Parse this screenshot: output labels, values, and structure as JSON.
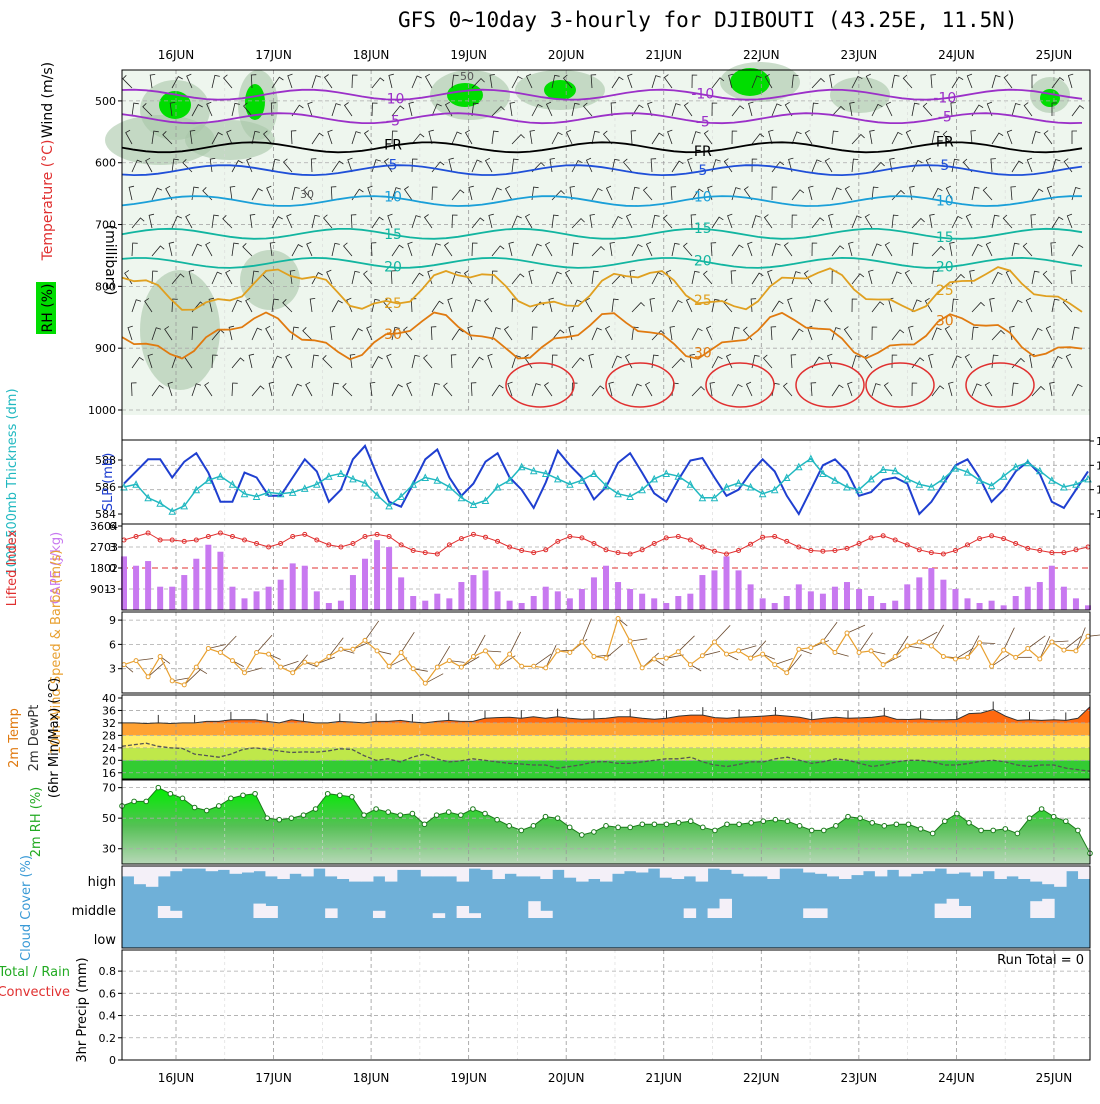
{
  "title": "GFS 0~10day 3-hourly for DJIBOUTI (43.25E, 11.5N)",
  "colors": {
    "rh_green": "#00dd00",
    "purple": "#9b30c8",
    "blue": "#1f4fd8",
    "lightblue": "#1a9fd8",
    "teal": "#12b5a0",
    "orange": "#e0a020",
    "darkorange": "#e07a10",
    "red": "#e03030",
    "cape": "#c879f0",
    "slp": "#1f3fd0",
    "thick": "#20b8c0",
    "wind": "#e8a030",
    "cloud": "#6fb0d8",
    "cloud_gap": "#f4f0f8",
    "rh2m": "#33cc33"
  },
  "chart_data": [
    {
      "id": "upper-air",
      "type": "contour",
      "dates": [
        "16JUN",
        "17JUN",
        "18JUN",
        "19JUN",
        "20JUN",
        "21JUN",
        "22JUN",
        "23JUN",
        "24JUN",
        "25JUN"
      ],
      "ylabel_parts": [
        "RH (%)",
        "Temperature (°C)",
        "Wind (m/s)",
        "(millibars)"
      ],
      "yticks": [
        500,
        600,
        700,
        800,
        900,
        1000
      ],
      "ylim": [
        1000,
        450
      ],
      "isotherms": [
        {
          "label": "-10",
          "level": 490,
          "color": "purple"
        },
        {
          "label": "-5",
          "level": 528,
          "color": "purple"
        },
        {
          "label": "FR",
          "level": 575,
          "color": "black"
        },
        {
          "label": "5",
          "level": 612,
          "color": "blue"
        },
        {
          "label": "10",
          "level": 662,
          "color": "lightblue"
        },
        {
          "label": "15",
          "level": 715,
          "color": "teal"
        },
        {
          "label": "20",
          "level": 762,
          "color": "teal"
        },
        {
          "label": "25",
          "level": 805,
          "color": "orange"
        },
        {
          "label": "30",
          "level": 880,
          "color": "darkorange"
        }
      ],
      "rh_labels": [
        "30",
        "50"
      ]
    },
    {
      "id": "slp-thickness",
      "type": "line",
      "ylabel_left": "1000-500mb Thickness (dm)",
      "ylabel_right": "SLP (mb)",
      "yticks_left": [
        584,
        586,
        588
      ],
      "yticks_right": [
        1000,
        1002,
        1004,
        1006
      ],
      "series": [
        {
          "name": "SLP (mb)",
          "values": [
            1002.5,
            1003.5,
            1004.5,
            1004.5,
            1003,
            1004.3,
            1005,
            1003.4,
            1001,
            1001,
            1003.4,
            1003,
            1001.5,
            1001.5,
            1003,
            1004.5,
            1003.5,
            1001,
            1002,
            1004.5,
            1005.6,
            1003.2,
            1001,
            1000.6,
            1002.5,
            1004.5,
            1005.3,
            1003,
            1001.5,
            1002.5,
            1004.3,
            1005,
            1003,
            1002,
            1000.5,
            1002.6,
            1005.2,
            1004,
            1003,
            1001.2,
            1002.2,
            1004.2,
            1005,
            1003.4,
            1001.7,
            1001,
            1002.8,
            1004.4,
            1004.6,
            1003,
            1001.5,
            1002,
            1003.4,
            1004.5,
            1003.5,
            1001.5,
            1000,
            1002,
            1004,
            1004.5,
            1003.5,
            1001.5,
            1001.8,
            1002.8,
            1003,
            1002.5,
            1000,
            1001,
            1002.5,
            1004,
            1004.5,
            1003,
            1001,
            1002,
            1003.5,
            1004.3,
            1003.3,
            1001,
            1000.5,
            1002,
            1003.5
          ]
        },
        {
          "name": "Thickness (dm)",
          "values": [
            586,
            586.2,
            585.2,
            584.8,
            584.2,
            584.6,
            585.8,
            586.5,
            586.8,
            586.2,
            585.5,
            585.3,
            585.6,
            585.5,
            585.6,
            585.9,
            586.2,
            586.8,
            587,
            586.6,
            586.3,
            585.4,
            584.6,
            585.3,
            586.2,
            586.7,
            586.5,
            586,
            585.2,
            584.7,
            585,
            586,
            586.5,
            587.5,
            587.2,
            587,
            586.6,
            586.2,
            586.5,
            587,
            586.1,
            585.5,
            585.3,
            585.8,
            586.6,
            587,
            586.8,
            586.2,
            585.2,
            585.2,
            586,
            586.3,
            586,
            585.5,
            585.8,
            586.7,
            587.5,
            588.1,
            587,
            586.5,
            586,
            585.8,
            586.6,
            587.3,
            587.2,
            586.6,
            586.2,
            586,
            586.6,
            587.4,
            587.1,
            586.5,
            586.1,
            586.8,
            587.5,
            587.8,
            587.2,
            586.5,
            586,
            586.2,
            586.6
          ]
        }
      ]
    },
    {
      "id": "li-cape",
      "type": "bar",
      "ylabel_left": "Lifted Index",
      "ylabel_right": "CAPE (J/kg)",
      "yticks_left": [
        -3,
        0,
        3,
        6
      ],
      "yticks_right": [
        901,
        1802,
        2703,
        3604
      ],
      "cape": [
        2300,
        1900,
        2100,
        1000,
        1000,
        1500,
        2200,
        2800,
        2500,
        1000,
        500,
        800,
        1000,
        1300,
        2000,
        1900,
        800,
        300,
        400,
        1500,
        2200,
        3000,
        2700,
        1400,
        600,
        400,
        700,
        500,
        1200,
        1500,
        1700,
        800,
        400,
        300,
        600,
        1000,
        800,
        500,
        900,
        1400,
        1900,
        1200,
        900,
        700,
        500,
        300,
        600,
        700,
        1500,
        1700,
        2300,
        1700,
        1100,
        500,
        300,
        600,
        1100,
        800,
        700,
        1000,
        1200,
        900,
        600,
        300,
        400,
        1100,
        1400,
        1800,
        1300,
        900,
        500,
        300,
        400,
        200,
        600,
        1000,
        1200,
        1900,
        1000,
        500,
        200
      ],
      "lifted_index": [
        -4,
        -4.5,
        -5,
        -4,
        -4,
        -3.8,
        -4,
        -4.5,
        -5,
        -4.5,
        -4,
        -3.5,
        -3,
        -3.5,
        -4.5,
        -4.8,
        -4,
        -3.3,
        -3,
        -3.5,
        -4.5,
        -4.8,
        -4.5,
        -3.3,
        -2.5,
        -2.2,
        -2,
        -3.3,
        -4.2,
        -4.8,
        -4.4,
        -3.8,
        -3,
        -2.5,
        -2.2,
        -2.6,
        -3.8,
        -4.5,
        -4.3,
        -3.5,
        -2.6,
        -2.2,
        -2,
        -2.6,
        -3.5,
        -4.3,
        -4.5,
        -4,
        -3,
        -2.4,
        -2,
        -2.5,
        -3.4,
        -4.4,
        -4.5,
        -3.8,
        -3,
        -2.5,
        -2.4,
        -2.5,
        -2.8,
        -3.5,
        -4.3,
        -4.6,
        -4,
        -3.3,
        -2.6,
        -2.2,
        -2,
        -2.5,
        -3.3,
        -4.2,
        -4.6,
        -4.2,
        -3.5,
        -2.8,
        -2.5,
        -2.2,
        -2.2,
        -2.6,
        -3
      ]
    },
    {
      "id": "wind-10m",
      "type": "line",
      "ylabel": "10m Wind Speed & Barbs (m/s)",
      "yticks": [
        3,
        6,
        9
      ],
      "values": [
        3.5,
        4,
        2,
        4.5,
        1.5,
        1,
        3.2,
        5.5,
        5,
        4,
        2.5,
        5,
        4.8,
        3.2,
        2.5,
        3.8,
        3.6,
        4.5,
        5.4,
        5.4,
        6.5,
        5.2,
        3.3,
        5,
        3,
        1.2,
        3.2,
        4,
        3.2,
        4.5,
        5.2,
        3.2,
        4.8,
        3.3,
        3.3,
        3.1,
        5.2,
        5,
        6.3,
        4.5,
        4.3,
        9.2,
        6.4,
        3.1,
        4.2,
        4.3,
        5.1,
        3.5,
        4.6,
        6.3,
        4.8,
        5.2,
        4.3,
        4.8,
        3.5,
        2.5,
        5.4,
        5.6,
        6.4,
        5,
        7.4,
        5,
        5.2,
        3.5,
        4.5,
        5.8,
        6.3,
        5.8,
        4.5,
        4.2,
        4.4,
        6.2,
        3.3,
        5.3,
        4.4,
        5.5,
        4.2,
        6.3,
        5.3,
        5.2,
        7
      ]
    },
    {
      "id": "temp-2m",
      "type": "area",
      "ylabel_parts": [
        "2m Temp",
        "2m DewPt",
        "(6hr Min/Max) (°C)"
      ],
      "yticks": [
        16,
        20,
        24,
        28,
        32,
        36,
        40
      ],
      "temp": [
        32,
        32,
        31.8,
        32,
        31.8,
        32,
        32,
        32.5,
        32.5,
        33,
        33,
        33,
        32.5,
        32,
        33,
        32.5,
        32,
        32,
        32.5,
        32.3,
        32,
        32.5,
        32.5,
        32.8,
        32.3,
        32,
        32.5,
        32.8,
        32.5,
        32.5,
        33.5,
        33.7,
        33.8,
        33.5,
        34,
        33.5,
        34,
        33.5,
        33.2,
        33.3,
        33.5,
        34,
        34,
        33.5,
        33.2,
        33.5,
        34.2,
        34.5,
        34.5,
        33.7,
        33.5,
        33.8,
        34,
        34.2,
        34.5,
        34.2,
        33.8,
        33,
        33.5,
        33.8,
        33.5,
        33.6,
        33.8,
        34.3,
        33.2,
        33.1,
        33.3,
        33,
        33,
        33.1,
        35,
        35.2,
        36.3,
        34.2,
        32.8,
        33,
        32.8,
        33,
        32.8,
        33.5,
        37.2
      ],
      "dewpoint": [
        24.5,
        25,
        25.5,
        24.5,
        24,
        23.8,
        22,
        21.5,
        21,
        22,
        23.5,
        24,
        23.5,
        23,
        22.5,
        22.7,
        22.6,
        23,
        23.7,
        23.5,
        21.5,
        20,
        20.5,
        19.5,
        21,
        22,
        20.5,
        19.5,
        19.8,
        20.5,
        20,
        19.5,
        19,
        18.8,
        18.5,
        18.5,
        17.5,
        18,
        18.6,
        19.5,
        19.6,
        19,
        19,
        19.5,
        20,
        20.5,
        20.5,
        21,
        19.5,
        18.5,
        18,
        18.7,
        19.5,
        19.5,
        20.5,
        21,
        20,
        19,
        19.6,
        20.5,
        20,
        19,
        18,
        18.6,
        19.5,
        20,
        20,
        19.5,
        18.5,
        18.5,
        19,
        19.7,
        20,
        19.5,
        18.5,
        18,
        18.5,
        18.5,
        17.5,
        17,
        16.5
      ]
    },
    {
      "id": "rh-2m",
      "type": "area",
      "ylabel": "2m RH (%)",
      "yticks": [
        30,
        50,
        70
      ],
      "values": [
        58,
        61,
        61,
        70,
        66,
        63,
        57,
        55,
        58,
        63,
        65,
        66,
        50,
        49,
        50,
        52,
        56,
        66,
        65,
        64,
        52,
        56,
        54,
        52,
        53,
        46,
        52,
        54,
        52,
        56,
        53,
        49,
        45,
        42,
        45,
        51,
        50,
        44,
        39,
        41,
        45,
        44,
        44,
        46,
        46,
        46,
        47,
        48,
        44,
        42,
        46,
        46,
        47,
        48,
        49,
        48,
        45,
        42,
        42,
        45,
        51,
        50,
        47,
        45,
        46,
        46,
        43,
        40,
        48,
        53,
        47,
        42,
        42,
        43,
        40,
        50,
        56,
        51,
        48,
        42,
        27
      ]
    },
    {
      "id": "cloud-cover",
      "type": "heatmap",
      "ylabel": "Cloud Cover (%)",
      "levels": [
        "high",
        "middle",
        "low"
      ],
      "high": [
        0.6,
        0.3,
        0.2,
        0.6,
        0.8,
        0.9,
        0.9,
        0.8,
        0.85,
        0.7,
        0.75,
        0.8,
        0.6,
        0.5,
        0.7,
        0.6,
        0.9,
        0.6,
        0.5,
        0.4,
        0.4,
        0.6,
        0.4,
        0.85,
        0.85,
        0.6,
        0.6,
        0.6,
        0.4,
        0.9,
        0.85,
        0.5,
        0.7,
        0.6,
        0.6,
        0.5,
        0.85,
        0.55,
        0.4,
        0.5,
        0.4,
        0.7,
        0.8,
        0.75,
        0.9,
        0.55,
        0.5,
        0.6,
        0.4,
        0.9,
        0.85,
        0.7,
        0.6,
        0.6,
        0.5,
        0.9,
        0.9,
        0.75,
        0.7,
        0.6,
        0.5,
        0.65,
        0.8,
        0.6,
        0.85,
        0.6,
        0.7,
        0.8,
        0.9,
        0.7,
        0.75,
        0.6,
        0.8,
        0.5,
        0.6,
        0.5,
        0.4,
        0.3,
        0.2,
        0.8,
        0.5
      ],
      "middle": [
        0,
        0,
        0,
        0.5,
        0.3,
        0,
        0,
        0,
        0,
        0,
        0,
        0.6,
        0.5,
        0,
        0,
        0,
        0,
        0.4,
        0,
        0,
        0,
        0.3,
        0,
        0,
        0,
        0,
        0.2,
        0,
        0.5,
        0.2,
        0,
        0,
        0,
        0,
        0.7,
        0.3,
        0,
        0,
        0,
        0,
        0,
        0,
        0,
        0,
        0,
        0,
        0,
        0.4,
        0,
        0.4,
        0.8,
        0,
        0,
        0,
        0,
        0,
        0,
        0.4,
        0.4,
        0,
        0,
        0,
        0,
        0,
        0,
        0,
        0,
        0,
        0.6,
        0.8,
        0.5,
        0,
        0,
        0,
        0,
        0,
        0.7,
        0.8,
        0,
        0,
        0
      ],
      "low": []
    },
    {
      "id": "precip",
      "type": "bar",
      "ylabel_parts": [
        "Total / Rain",
        "Convective",
        "3hr Precip (mm)"
      ],
      "yticks": [
        0,
        0.2,
        0.4,
        0.6,
        0.8
      ],
      "annotation": "Run Total = 0",
      "values": []
    }
  ]
}
